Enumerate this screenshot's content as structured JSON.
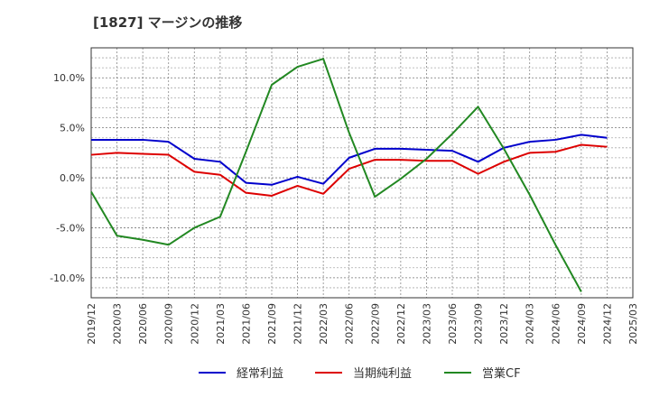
{
  "chart_data": {
    "type": "line",
    "title": "[1827]  マージンの推移",
    "x": [
      "2019/12",
      "2020/03",
      "2020/06",
      "2020/09",
      "2020/12",
      "2021/03",
      "2021/06",
      "2021/09",
      "2021/12",
      "2022/03",
      "2022/06",
      "2022/09",
      "2022/12",
      "2023/03",
      "2023/06",
      "2023/09",
      "2023/12",
      "2024/03",
      "2024/06",
      "2024/09",
      "2024/12",
      "2025/03"
    ],
    "ylim": [
      -12.0,
      13.0
    ],
    "yticks": [
      10.0,
      5.0,
      0.0,
      -5.0,
      -10.0
    ],
    "ytick_labels": [
      "10.0%",
      "5.0%",
      "0.0%",
      "-5.0%",
      "-10.0%"
    ],
    "grid": true,
    "legend_position": "bottom",
    "series": [
      {
        "name": "経常利益",
        "color": "#0000cc",
        "values": [
          3.8,
          3.8,
          3.8,
          3.6,
          1.9,
          1.6,
          -0.5,
          -0.7,
          0.1,
          -0.6,
          2.0,
          2.9,
          2.9,
          2.8,
          2.7,
          1.6,
          3.0,
          3.6,
          3.8,
          4.3,
          4.0,
          null
        ]
      },
      {
        "name": "当期純利益",
        "color": "#dd0000",
        "values": [
          2.3,
          2.5,
          2.4,
          2.3,
          0.6,
          0.3,
          -1.5,
          -1.8,
          -0.8,
          -1.6,
          0.9,
          1.8,
          1.8,
          1.7,
          1.7,
          0.4,
          1.6,
          2.5,
          2.6,
          3.3,
          3.1,
          null
        ]
      },
      {
        "name": "営業CF",
        "color": "#228822",
        "values": [
          -1.4,
          -5.8,
          -6.2,
          -6.7,
          -5.0,
          -3.9,
          2.6,
          9.3,
          11.1,
          11.9,
          4.5,
          -1.9,
          -0.1,
          1.9,
          4.4,
          7.1,
          2.9,
          -1.7,
          -6.7,
          -11.4,
          null,
          null
        ]
      }
    ]
  }
}
